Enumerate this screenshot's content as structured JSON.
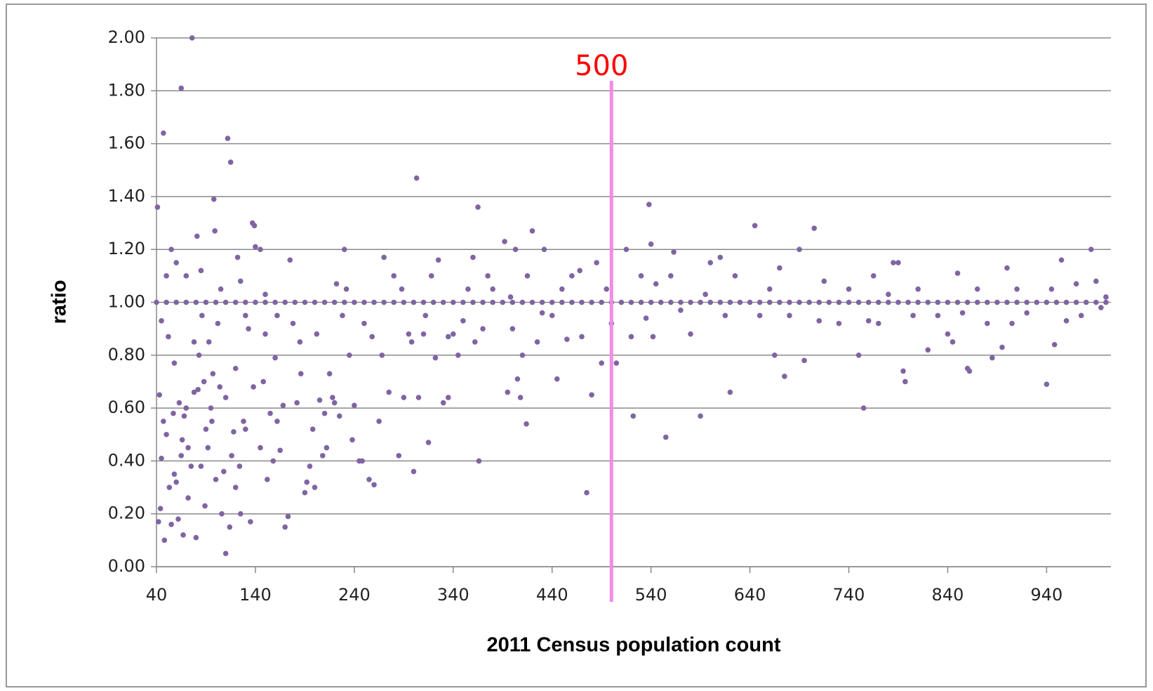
{
  "chart_data": {
    "type": "scatter",
    "xlabel": "2011 Census population count",
    "ylabel": "ratio",
    "color": "#8064a2",
    "xlim": [
      40,
      1005
    ],
    "xticks": [
      40,
      140,
      240,
      340,
      440,
      540,
      640,
      740,
      840,
      940
    ],
    "ylim": [
      0,
      2
    ],
    "yticks": [
      {
        "value": 0,
        "label": "0.00"
      },
      {
        "value": 0.2,
        "label": "0.20"
      },
      {
        "value": 0.4,
        "label": "0.40"
      },
      {
        "value": 0.6,
        "label": "0.60"
      },
      {
        "value": 0.8,
        "label": "0.80"
      },
      {
        "value": 1,
        "label": "1.00"
      },
      {
        "value": 1.2,
        "label": "1.20"
      },
      {
        "value": 1.4,
        "label": "1.40"
      },
      {
        "value": 1.6,
        "label": "1.60"
      },
      {
        "value": 1.8,
        "label": "1.80"
      },
      {
        "value": 2,
        "label": "2.00"
      }
    ],
    "grid": true,
    "annotations": [
      {
        "text": "500",
        "x": 500,
        "color": "#ff0000",
        "line_color": "#f08ce6"
      }
    ],
    "x": [
      76,
      65,
      47,
      112,
      115,
      41,
      98,
      137,
      139,
      81,
      99,
      55,
      140,
      122,
      60,
      50,
      70,
      85,
      105,
      125,
      45,
      52,
      58,
      63,
      68,
      72,
      78,
      83,
      88,
      93,
      96,
      102,
      108,
      110,
      118,
      120,
      128,
      133,
      138,
      43,
      45,
      44,
      42,
      48,
      55,
      60,
      62,
      67,
      72,
      80,
      85,
      90,
      95,
      100,
      106,
      110,
      114,
      120,
      125,
      130,
      135,
      50,
      53,
      57,
      65,
      70,
      75,
      78,
      86,
      92,
      104,
      116,
      124,
      130,
      47,
      58,
      66,
      82,
      89,
      97,
      145,
      150,
      155,
      160,
      165,
      170,
      173,
      175,
      178,
      182,
      186,
      190,
      192,
      195,
      198,
      200,
      202,
      205,
      210,
      212,
      215,
      218,
      220,
      222,
      225,
      230,
      235,
      238,
      150,
      158,
      162,
      168,
      145,
      152,
      148,
      185,
      208,
      228,
      232,
      162,
      240,
      245,
      248,
      255,
      260,
      265,
      268,
      270,
      275,
      280,
      285,
      290,
      295,
      300,
      303,
      305,
      310,
      315,
      318,
      322,
      325,
      330,
      335,
      340,
      345,
      350,
      355,
      360,
      362,
      365,
      366,
      370,
      380,
      392,
      395,
      400,
      403,
      405,
      408,
      410,
      414,
      420,
      425,
      432,
      440,
      250,
      258,
      288,
      298,
      312,
      335,
      375,
      398,
      415,
      430,
      445,
      450,
      455,
      460,
      468,
      470,
      475,
      480,
      485,
      490,
      495,
      500,
      505,
      515,
      520,
      522,
      530,
      535,
      538,
      540,
      542,
      545,
      555,
      560,
      563,
      570,
      580,
      590,
      595,
      600,
      610,
      615,
      620,
      625,
      645,
      650,
      660,
      665,
      670,
      675,
      680,
      690,
      695,
      705,
      710,
      715,
      730,
      740,
      750,
      755,
      760,
      765,
      770,
      780,
      785,
      790,
      795,
      797,
      805,
      810,
      820,
      830,
      840,
      845,
      850,
      855,
      860,
      862,
      870,
      880,
      885,
      895,
      900,
      905,
      910,
      920,
      940,
      945,
      948,
      955,
      960,
      970,
      975,
      985,
      990,
      995,
      1000,
      40,
      50,
      60,
      70,
      80,
      90,
      100,
      110,
      120,
      130,
      140,
      150,
      160,
      170,
      180,
      190,
      200,
      210,
      220,
      230,
      240,
      250,
      260,
      270,
      280,
      290,
      300,
      310,
      320,
      330,
      340,
      350,
      360,
      370,
      380,
      390,
      400,
      410,
      420,
      430,
      440,
      450,
      460,
      470,
      480,
      490,
      500,
      510,
      520,
      530,
      540,
      550,
      560,
      570,
      580,
      590,
      600,
      610,
      620,
      630,
      640,
      650,
      660,
      670,
      680,
      690,
      700,
      710,
      720,
      730,
      740,
      750,
      760,
      770,
      780,
      790,
      800,
      810,
      820,
      830,
      840,
      850,
      860,
      870,
      880,
      890,
      900,
      910,
      920,
      930,
      940,
      950,
      960,
      970,
      980,
      990,
      1000
    ],
    "values": [
      2.0,
      1.81,
      1.64,
      1.62,
      1.53,
      1.36,
      1.39,
      1.3,
      1.29,
      1.25,
      1.27,
      1.2,
      1.21,
      1.17,
      1.15,
      1.1,
      1.1,
      1.12,
      1.05,
      1.08,
      0.93,
      0.87,
      0.77,
      0.62,
      0.57,
      0.45,
      0.66,
      0.8,
      0.7,
      0.85,
      0.55,
      0.92,
      0.36,
      0.64,
      0.51,
      0.75,
      0.55,
      0.9,
      0.68,
      0.65,
      0.41,
      0.22,
      0.17,
      0.1,
      0.16,
      0.32,
      0.18,
      0.12,
      0.26,
      0.11,
      0.38,
      0.52,
      0.6,
      0.33,
      0.2,
      0.05,
      0.15,
      0.3,
      0.2,
      0.52,
      0.17,
      0.5,
      0.3,
      0.58,
      0.42,
      0.6,
      0.38,
      0.85,
      0.95,
      0.45,
      0.68,
      0.42,
      0.38,
      0.95,
      0.55,
      0.35,
      0.48,
      0.67,
      0.23,
      0.73,
      1.2,
      1.03,
      0.58,
      0.79,
      0.44,
      0.15,
      0.19,
      1.16,
      0.92,
      0.62,
      0.73,
      0.28,
      0.32,
      0.38,
      0.52,
      0.3,
      0.88,
      0.63,
      0.58,
      0.45,
      0.73,
      0.64,
      0.62,
      1.07,
      0.57,
      1.2,
      0.8,
      0.48,
      0.88,
      0.4,
      0.95,
      0.61,
      0.45,
      0.33,
      0.7,
      0.85,
      0.42,
      0.95,
      1.05,
      0.55,
      0.61,
      0.4,
      0.4,
      0.33,
      0.31,
      0.55,
      0.8,
      1.17,
      0.66,
      1.1,
      0.42,
      0.64,
      0.88,
      0.36,
      1.47,
      0.64,
      0.88,
      0.47,
      1.1,
      0.79,
      1.16,
      0.62,
      0.64,
      0.88,
      0.8,
      0.93,
      1.05,
      1.17,
      0.85,
      1.36,
      0.4,
      0.9,
      1.05,
      1.23,
      0.66,
      0.9,
      1.2,
      0.71,
      0.64,
      0.8,
      0.54,
      1.27,
      0.85,
      1.2,
      0.95,
      0.92,
      0.87,
      1.05,
      0.85,
      0.95,
      0.87,
      1.1,
      1.02,
      1.1,
      0.96,
      0.71,
      1.05,
      0.86,
      1.1,
      1.12,
      0.87,
      0.28,
      0.65,
      1.15,
      0.77,
      1.05,
      0.92,
      0.77,
      1.2,
      0.87,
      0.57,
      1.1,
      0.94,
      1.37,
      1.22,
      0.87,
      1.07,
      0.49,
      1.1,
      1.19,
      0.97,
      0.88,
      0.57,
      1.03,
      1.15,
      1.17,
      0.95,
      0.66,
      1.1,
      1.29,
      0.95,
      1.05,
      0.8,
      1.13,
      0.72,
      0.95,
      1.2,
      0.78,
      1.28,
      0.93,
      1.08,
      0.92,
      1.05,
      0.8,
      0.6,
      0.93,
      1.1,
      0.92,
      1.03,
      1.15,
      1.15,
      0.74,
      0.7,
      0.95,
      1.05,
      0.82,
      0.95,
      0.88,
      0.85,
      1.11,
      0.96,
      0.75,
      0.74,
      1.05,
      0.92,
      0.79,
      0.83,
      1.13,
      0.92,
      1.05,
      0.96,
      0.69,
      1.05,
      0.84,
      1.16,
      0.93,
      1.07,
      0.95,
      1.2,
      1.08,
      0.98,
      1.02,
      1,
      1,
      1,
      1,
      1,
      1,
      1,
      1,
      1,
      1,
      1,
      1,
      1,
      1,
      1,
      1,
      1,
      1,
      1,
      1,
      1,
      1,
      1,
      1,
      1,
      1,
      1,
      1,
      1,
      1,
      1,
      1,
      1,
      1,
      1,
      1,
      1,
      1,
      1,
      1,
      1,
      1,
      1,
      1,
      1,
      1,
      1,
      1,
      1,
      1,
      1,
      1,
      1,
      1,
      1,
      1,
      1,
      1,
      1,
      1,
      1,
      1,
      1,
      1,
      1,
      1,
      1,
      1,
      1,
      1,
      1,
      1,
      1,
      1,
      1,
      1,
      1,
      1,
      1,
      1,
      1,
      1,
      1,
      1,
      1,
      1,
      1,
      1,
      1,
      1,
      1,
      1,
      1,
      1,
      1,
      1,
      1
    ]
  }
}
